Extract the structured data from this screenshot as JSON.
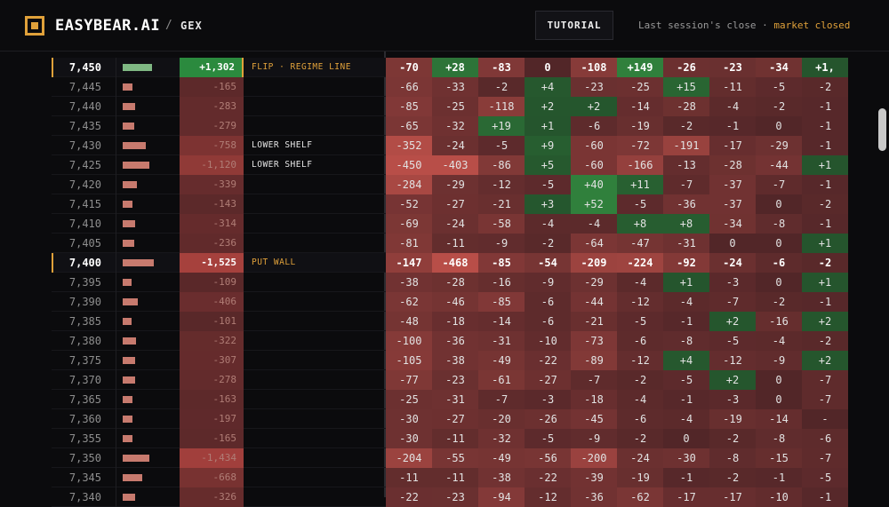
{
  "header": {
    "brand": "EASYBEAR.AI",
    "separator": "/",
    "section": "GEX",
    "tutorial_label": "TUTORIAL",
    "session_text": "Last session's close ·",
    "market_status": "market closed",
    "accent_color": "#e0a13a"
  },
  "colors": {
    "positive": "#2f7a3d",
    "negative": "#9c4a47",
    "background": "#0b0b0d"
  },
  "rows": [
    {
      "strike": "7,450",
      "key": true,
      "bar": 0.55,
      "bar_sign": "pos",
      "gex": "+1,302",
      "gex_value": 1302,
      "label": "FLIP · REGIME LINE",
      "label_type": "flip",
      "cells": [
        "-70",
        "+28",
        "-83",
        "0",
        "-108",
        "+149",
        "-26",
        "-23",
        "-34",
        "+1,"
      ]
    },
    {
      "strike": "7,445",
      "bar": 0.19,
      "gex": "-165",
      "gex_value": -165,
      "label": "",
      "cells": [
        "-66",
        "-33",
        "-2",
        "+4",
        "-23",
        "-25",
        "+15",
        "-11",
        "-5",
        "-2"
      ]
    },
    {
      "strike": "7,440",
      "bar": 0.24,
      "gex": "-283",
      "gex_value": -283,
      "label": "",
      "cells": [
        "-85",
        "-25",
        "-118",
        "+2",
        "+2",
        "-14",
        "-28",
        "-4",
        "-2",
        "-1"
      ]
    },
    {
      "strike": "7,435",
      "bar": 0.22,
      "gex": "-279",
      "gex_value": -279,
      "label": "",
      "cells": [
        "-65",
        "-32",
        "+19",
        "+1",
        "-6",
        "-19",
        "-2",
        "-1",
        "0",
        "-1"
      ]
    },
    {
      "strike": "7,430",
      "bar": 0.44,
      "gex": "-758",
      "gex_value": -758,
      "label": "LOWER SHELF",
      "label_type": "shelf",
      "cells": [
        "-352",
        "-24",
        "-5",
        "+9",
        "-60",
        "-72",
        "-191",
        "-17",
        "-29",
        "-1"
      ]
    },
    {
      "strike": "7,425",
      "bar": 0.5,
      "gex": "-1,120",
      "gex_value": -1120,
      "label": "LOWER SHELF",
      "label_type": "shelf",
      "cells": [
        "-450",
        "-403",
        "-86",
        "+5",
        "-60",
        "-166",
        "-13",
        "-28",
        "-44",
        "+1"
      ]
    },
    {
      "strike": "7,420",
      "bar": 0.26,
      "gex": "-339",
      "gex_value": -339,
      "label": "",
      "cells": [
        "-284",
        "-29",
        "-12",
        "-5",
        "+40",
        "+11",
        "-7",
        "-37",
        "-7",
        "-1"
      ]
    },
    {
      "strike": "7,415",
      "bar": 0.18,
      "gex": "-143",
      "gex_value": -143,
      "label": "",
      "cells": [
        "-52",
        "-27",
        "-21",
        "+3",
        "+52",
        "-5",
        "-36",
        "-37",
        "0",
        "-2"
      ]
    },
    {
      "strike": "7,410",
      "bar": 0.24,
      "gex": "-314",
      "gex_value": -314,
      "label": "",
      "cells": [
        "-69",
        "-24",
        "-58",
        "-4",
        "-4",
        "+8",
        "+8",
        "-34",
        "-8",
        "-1"
      ]
    },
    {
      "strike": "7,405",
      "bar": 0.21,
      "gex": "-236",
      "gex_value": -236,
      "label": "",
      "cells": [
        "-81",
        "-11",
        "-9",
        "-2",
        "-64",
        "-47",
        "-31",
        "0",
        "0",
        "+1"
      ]
    },
    {
      "strike": "7,400",
      "key": true,
      "bar": 0.58,
      "gex": "-1,525",
      "gex_value": -1525,
      "label": "PUT WALL",
      "label_type": "wall",
      "cells": [
        "-147",
        "-468",
        "-85",
        "-54",
        "-209",
        "-224",
        "-92",
        "-24",
        "-6",
        "-2"
      ]
    },
    {
      "strike": "7,395",
      "bar": 0.17,
      "gex": "-109",
      "gex_value": -109,
      "label": "",
      "cells": [
        "-38",
        "-28",
        "-16",
        "-9",
        "-29",
        "-4",
        "+1",
        "-3",
        "0",
        "+1"
      ]
    },
    {
      "strike": "7,390",
      "bar": 0.28,
      "gex": "-406",
      "gex_value": -406,
      "label": "",
      "cells": [
        "-62",
        "-46",
        "-85",
        "-6",
        "-44",
        "-12",
        "-4",
        "-7",
        "-2",
        "-1"
      ]
    },
    {
      "strike": "7,385",
      "bar": 0.16,
      "gex": "-101",
      "gex_value": -101,
      "label": "",
      "cells": [
        "-48",
        "-18",
        "-14",
        "-6",
        "-21",
        "-5",
        "-1",
        "+2",
        "-16",
        "+2"
      ]
    },
    {
      "strike": "7,380",
      "bar": 0.25,
      "gex": "-322",
      "gex_value": -322,
      "label": "",
      "cells": [
        "-100",
        "-36",
        "-31",
        "-10",
        "-73",
        "-6",
        "-8",
        "-5",
        "-4",
        "-2"
      ]
    },
    {
      "strike": "7,375",
      "bar": 0.24,
      "gex": "-307",
      "gex_value": -307,
      "label": "",
      "cells": [
        "-105",
        "-38",
        "-49",
        "-22",
        "-89",
        "-12",
        "+4",
        "-12",
        "-9",
        "+2"
      ]
    },
    {
      "strike": "7,370",
      "bar": 0.23,
      "gex": "-278",
      "gex_value": -278,
      "label": "",
      "cells": [
        "-77",
        "-23",
        "-61",
        "-27",
        "-7",
        "-2",
        "-5",
        "+2",
        "0",
        "-7"
      ]
    },
    {
      "strike": "7,365",
      "bar": 0.18,
      "gex": "-163",
      "gex_value": -163,
      "label": "",
      "cells": [
        "-25",
        "-31",
        "-7",
        "-3",
        "-18",
        "-4",
        "-1",
        "-3",
        "0",
        "-7"
      ]
    },
    {
      "strike": "7,360",
      "bar": 0.19,
      "gex": "-197",
      "gex_value": -197,
      "label": "",
      "cells": [
        "-30",
        "-27",
        "-20",
        "-26",
        "-45",
        "-6",
        "-4",
        "-19",
        "-14",
        "-"
      ]
    },
    {
      "strike": "7,355",
      "bar": 0.18,
      "gex": "-165",
      "gex_value": -165,
      "label": "",
      "cells": [
        "-30",
        "-11",
        "-32",
        "-5",
        "-9",
        "-2",
        "0",
        "-2",
        "-8",
        "-6"
      ]
    },
    {
      "strike": "7,350",
      "bar": 0.5,
      "gex": "-1,434",
      "gex_value": -1434,
      "label": "",
      "cells": [
        "-204",
        "-55",
        "-49",
        "-56",
        "-200",
        "-24",
        "-30",
        "-8",
        "-15",
        "-7"
      ]
    },
    {
      "strike": "7,345",
      "bar": 0.36,
      "gex": "-668",
      "gex_value": -668,
      "label": "",
      "cells": [
        "-11",
        "-11",
        "-38",
        "-22",
        "-39",
        "-19",
        "-1",
        "-2",
        "-1",
        "-5"
      ]
    },
    {
      "strike": "7,340",
      "bar": 0.24,
      "gex": "-326",
      "gex_value": -326,
      "label": "",
      "cells": [
        "-22",
        "-23",
        "-94",
        "-12",
        "-36",
        "-62",
        "-17",
        "-17",
        "-10",
        "-1"
      ]
    }
  ]
}
